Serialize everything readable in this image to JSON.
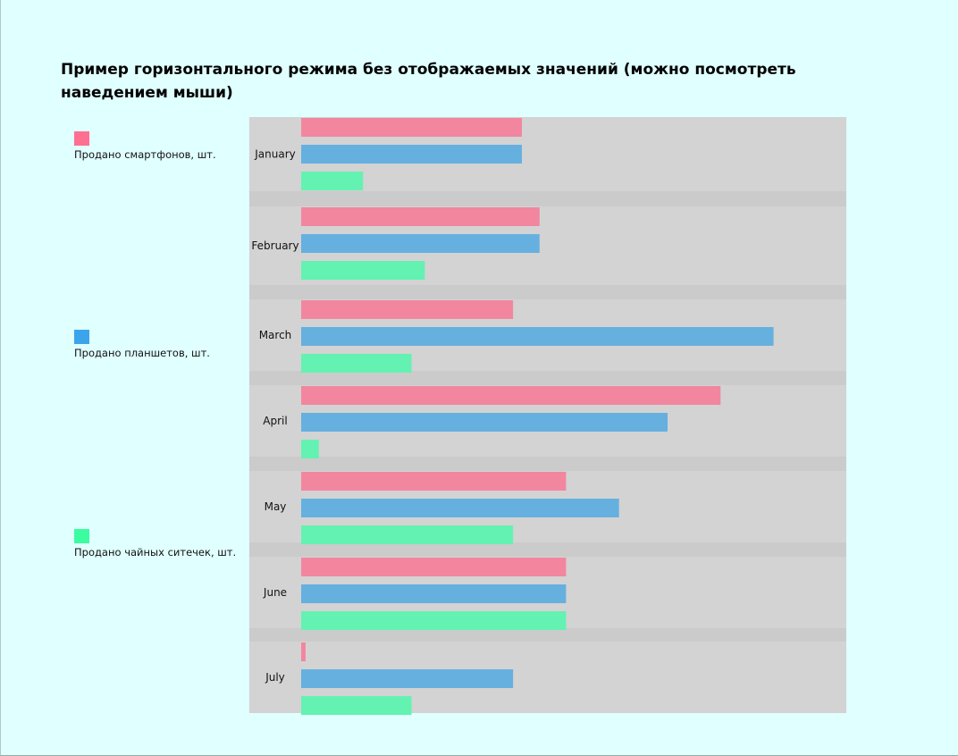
{
  "chart_data": {
    "type": "bar",
    "orientation": "horizontal",
    "title": "Пример горизонтального режима без отображаемых значений (можно посмотреть наведением мыши)",
    "categories": [
      "January",
      "February",
      "March",
      "April",
      "May",
      "June",
      "July"
    ],
    "series": [
      {
        "name": "Продано смартфонов, шт.",
        "color": "#f2869f",
        "legend_color": "#ff6f91",
        "values": [
          50,
          54,
          48,
          95,
          60,
          60,
          1
        ]
      },
      {
        "name": "Продано планшетов, шт.",
        "color": "#66b0e0",
        "legend_color": "#3ba4ea",
        "values": [
          50,
          54,
          107,
          83,
          72,
          60,
          48
        ]
      },
      {
        "name": "Продано чайных ситечек, шт.",
        "color": "#63f2b1",
        "legend_color": "#3cfca0",
        "values": [
          14,
          28,
          25,
          4,
          48,
          60,
          25
        ]
      }
    ],
    "xlim": [
      0,
      123
    ],
    "grid": false,
    "legend_placement": "left"
  }
}
